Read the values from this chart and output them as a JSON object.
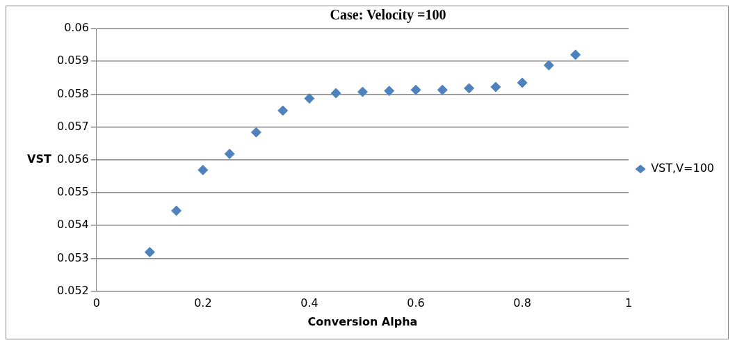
{
  "chart_data": {
    "type": "scatter",
    "title": "Case: Velocity =100",
    "xlabel": "Conversion Alpha",
    "ylabel": "VST",
    "x": [
      0.1,
      0.15,
      0.2,
      0.25,
      0.3,
      0.35,
      0.4,
      0.45,
      0.5,
      0.55,
      0.6,
      0.65,
      0.7,
      0.75,
      0.8,
      0.85,
      0.9
    ],
    "series": [
      {
        "name": "VST,V=100",
        "color": "#4f81bd",
        "values": [
          0.05319,
          0.05445,
          0.05569,
          0.05618,
          0.05684,
          0.0575,
          0.05787,
          0.05803,
          0.05807,
          0.0581,
          0.05813,
          0.05813,
          0.05818,
          0.05822,
          0.05835,
          0.05888,
          0.0592
        ]
      }
    ],
    "xlim": [
      0,
      1
    ],
    "xticks": [
      0,
      0.2,
      0.4,
      0.6,
      0.8,
      1
    ],
    "ylim": [
      0.052,
      0.06
    ],
    "yticks": [
      0.052,
      0.053,
      0.054,
      0.055,
      0.056,
      0.057,
      0.058,
      0.059,
      0.06
    ],
    "grid": "y",
    "legend": "right",
    "marker": "diamond"
  }
}
